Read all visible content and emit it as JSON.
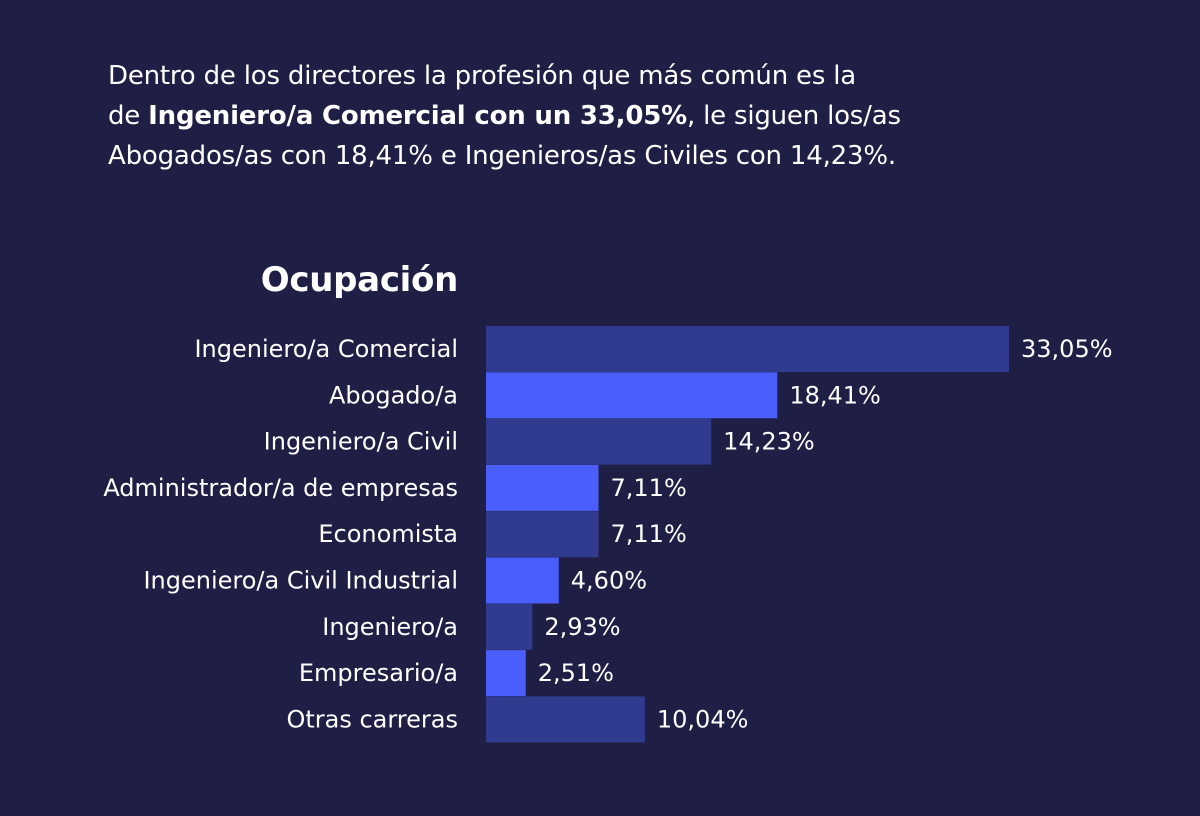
{
  "intro": {
    "line1": "Dentro de los directores la profesión que más común es la",
    "line2_pre": "de ",
    "line2_bold": "Ingeniero/a Comercial con un 33,05%",
    "line2_post": ", le siguen los/as",
    "line3": "Abogados/as con 18,41% e Ingenieros/as Civiles con 14,23%."
  },
  "chart_data": {
    "type": "bar",
    "orientation": "horizontal",
    "title": "Ocupación",
    "xlabel": "",
    "ylabel": "",
    "xlim": [
      0,
      33.05
    ],
    "grid": false,
    "categories": [
      "Ingeniero/a Comercial",
      "Abogado/a",
      "Ingeniero/a Civil",
      "Administrador/a de empresas",
      "Economista",
      "Ingeniero/a Civil Industrial",
      "Ingeniero/a",
      "Empresario/a",
      "Otras carreras"
    ],
    "values": [
      33.05,
      18.41,
      14.23,
      7.11,
      7.11,
      4.6,
      2.93,
      2.51,
      10.04
    ],
    "value_labels": [
      "33,05%",
      "18,41%",
      "14,23%",
      "7,11%",
      "7,11%",
      "4,60%",
      "2,93%",
      "2,51%",
      "10,04%"
    ],
    "colors": [
      "#303b8f",
      "#4a5efb",
      "#303b8f",
      "#4a5efb",
      "#303b8f",
      "#4a5efb",
      "#303b8f",
      "#4a5efb",
      "#303b8f"
    ]
  }
}
